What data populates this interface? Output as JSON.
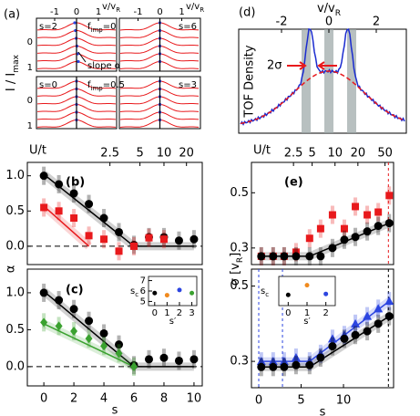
{
  "chart_data": [
    {
      "type": "spectra",
      "label": "(a)",
      "ylabel": [
        "I / I",
        "max"
      ],
      "xlabel": [
        "v/v",
        "R"
      ],
      "xticks": [
        -1,
        0,
        1
      ],
      "yticks": [
        0,
        1
      ],
      "subpanels": [
        {
          "text": "s=2"
        },
        {
          "text": "s=6"
        },
        {
          "text": "s=0"
        },
        {
          "text": "s=3"
        }
      ],
      "fimp": [
        [
          "f",
          "imp",
          "=0"
        ],
        [
          "f",
          "imp",
          "=0.5"
        ]
      ],
      "annotation": "slope α"
    },
    {
      "type": "profile",
      "label": "(d)",
      "xlabel": [
        "v/v",
        "R"
      ],
      "xticks": [
        -2,
        0,
        2
      ],
      "ylabel": "TOF Density",
      "annotation": "2σ"
    },
    {
      "type": "scatter",
      "label": "(b)",
      "xlim": [
        -1.1,
        10.55
      ],
      "ylim": [
        -0.26,
        1.19
      ],
      "yticks": [
        {
          "value": 0,
          "label": "0.0"
        },
        {
          "value": 0.5,
          "label": "0.5"
        },
        {
          "value": 1,
          "label": "1.0"
        }
      ],
      "x2label": "U/t",
      "x2ticks": [
        {
          "value": 4.4,
          "label": "2.5"
        },
        {
          "value": 6.4,
          "label": "5"
        },
        {
          "value": 8,
          "label": "10"
        },
        {
          "value": 9.5,
          "label": "20"
        }
      ],
      "reference_line": 0,
      "series": [
        {
          "marker": "circle",
          "color": "#000000",
          "x": [
            0,
            1,
            2,
            3,
            4,
            5,
            6,
            7,
            8,
            9,
            10
          ],
          "values": [
            1.0,
            0.88,
            0.75,
            0.6,
            0.4,
            0.2,
            0.02,
            0.13,
            0.13,
            0.08,
            0.1
          ]
        },
        {
          "marker": "square",
          "color": "#e8191c",
          "x": [
            0,
            1,
            2,
            3,
            4,
            5,
            6,
            7,
            8
          ],
          "values": [
            0.55,
            0.5,
            0.4,
            0.15,
            0.1,
            -0.07,
            0.0,
            0.12,
            0.1
          ]
        }
      ],
      "fits": [
        {
          "color": "#000000",
          "x": [
            0,
            6,
            10
          ],
          "values": [
            1.02,
            0,
            0
          ]
        },
        {
          "color": "#e8191c",
          "x": [
            0,
            3
          ],
          "values": [
            0.57,
            0
          ]
        }
      ]
    },
    {
      "type": "scatter",
      "label": "(c)",
      "xlim": [
        -1.1,
        10.55
      ],
      "ylim": [
        -0.26,
        1.32
      ],
      "yticks": [
        {
          "value": 0,
          "label": "0.0"
        },
        {
          "value": 0.5,
          "label": "0.5"
        },
        {
          "value": 1,
          "label": "1.0"
        }
      ],
      "xticks": [
        0,
        2,
        4,
        6,
        8,
        10
      ],
      "xlabel": "s",
      "ylabel": "α",
      "reference_line": 0,
      "series": [
        {
          "marker": "circle",
          "color": "#000000",
          "x": [
            0,
            1,
            2,
            3,
            4,
            5,
            6,
            7,
            8,
            9,
            10
          ],
          "values": [
            1.0,
            0.9,
            0.78,
            0.62,
            0.45,
            0.3,
            0.02,
            0.1,
            0.12,
            0.08,
            0.1
          ]
        },
        {
          "marker": "diamond",
          "color": "#3aa12f",
          "x": [
            0,
            1,
            2,
            3,
            4,
            5,
            6
          ],
          "values": [
            0.6,
            0.55,
            0.48,
            0.38,
            0.28,
            0.18,
            0.0
          ]
        }
      ],
      "fits": [
        {
          "color": "#000000",
          "x": [
            0,
            6,
            10
          ],
          "values": [
            1.02,
            0,
            0
          ]
        },
        {
          "color": "#3aa12f",
          "x": [
            0,
            6
          ],
          "values": [
            0.58,
            0
          ]
        }
      ]
    },
    {
      "type": "scatter",
      "label": "(e)",
      "xlim": [
        -0.86,
        15.91
      ],
      "ylim": [
        0.24,
        0.61
      ],
      "yticks": [
        0.3,
        0.5
      ],
      "x2label": "U/t",
      "x2ticks": [
        {
          "value": 4.1,
          "label": "2.5"
        },
        {
          "value": 6.3,
          "label": "5"
        },
        {
          "value": 9.0,
          "label": "10"
        },
        {
          "value": 11.7,
          "label": "20"
        },
        {
          "value": 14.9,
          "label": "50"
        }
      ],
      "vlines": [
        {
          "value": 15.3,
          "color": "#e8191c"
        }
      ],
      "series": [
        {
          "marker": "square",
          "color": "#e8191c",
          "x": [
            0.3,
            1.7,
            3.0,
            4.4,
            6.0,
            7.3,
            8.7,
            10.1,
            11.4,
            12.8,
            14.1,
            15.4
          ],
          "values": [
            0.27,
            0.27,
            0.27,
            0.285,
            0.335,
            0.37,
            0.42,
            0.37,
            0.45,
            0.42,
            0.43,
            0.49
          ]
        },
        {
          "marker": "circle",
          "color": "#000000",
          "x": [
            0.3,
            1.7,
            3.0,
            4.4,
            6.0,
            7.3,
            8.7,
            10.1,
            11.4,
            12.8,
            14.1,
            15.4
          ],
          "values": [
            0.27,
            0.27,
            0.27,
            0.27,
            0.27,
            0.27,
            0.3,
            0.33,
            0.34,
            0.36,
            0.38,
            0.39
          ]
        }
      ],
      "fits": [
        {
          "color": "#000000",
          "x": [
            0,
            6,
            15.4
          ],
          "values": [
            0.27,
            0.27,
            0.39
          ]
        }
      ]
    },
    {
      "type": "scatter",
      "label": "(f)",
      "xlim": [
        -0.86,
        15.91
      ],
      "ylim": [
        0.23,
        0.545
      ],
      "yticks": [
        0.3,
        0.5
      ],
      "xticks": [
        0,
        5,
        10
      ],
      "xlabel": "s",
      "ylabel": [
        "σ [v",
        "R",
        "]"
      ],
      "vlines": [
        {
          "value": 0,
          "color": "#2c45e0"
        },
        {
          "value": 2.8,
          "color": "#2c45e0"
        },
        {
          "value": 15.3,
          "color": "#000000"
        }
      ],
      "series": [
        {
          "marker": "triangle",
          "color": "#2c45e0",
          "x": [
            0.3,
            1.7,
            3.0,
            4.4,
            6.0,
            7.3,
            8.7,
            10.1,
            11.4,
            12.8,
            14.1,
            15.4
          ],
          "values": [
            0.3,
            0.3,
            0.3,
            0.31,
            0.3,
            0.32,
            0.36,
            0.37,
            0.4,
            0.42,
            0.44,
            0.46
          ]
        },
        {
          "marker": "circle",
          "color": "#000000",
          "x": [
            0.3,
            1.7,
            3.0,
            4.4,
            6.0,
            7.3,
            8.7,
            10.1,
            11.4,
            12.8,
            14.1,
            15.4
          ],
          "values": [
            0.285,
            0.285,
            0.285,
            0.29,
            0.29,
            0.31,
            0.34,
            0.36,
            0.37,
            0.38,
            0.4,
            0.42
          ]
        }
      ],
      "fits": [
        {
          "color": "#2c45e0",
          "x": [
            0,
            6,
            15.4
          ],
          "values": [
            0.3,
            0.3,
            0.46
          ]
        },
        {
          "color": "#000000",
          "x": [
            0,
            6,
            15.4
          ],
          "values": [
            0.285,
            0.285,
            0.42
          ]
        }
      ]
    },
    {
      "type": "scatter",
      "inset": true,
      "xlim": [
        -0.5,
        3.4
      ],
      "ylim": [
        4.6,
        7.4
      ],
      "yticks": [
        5,
        6,
        7
      ],
      "xticks": [
        0,
        1,
        2,
        3
      ],
      "xlabel": "s′",
      "ylabel": [
        "s",
        "c"
      ],
      "series": [
        {
          "marker": "small",
          "color": "#000000",
          "x": [
            0
          ],
          "values": [
            5.8
          ]
        },
        {
          "marker": "small",
          "color": "#f08a1e",
          "x": [
            1
          ],
          "values": [
            5.6
          ]
        },
        {
          "marker": "small",
          "color": "#2c45e0",
          "x": [
            2
          ],
          "values": [
            6.1
          ]
        },
        {
          "marker": "small",
          "color": "#3aa12f",
          "x": [
            3
          ],
          "values": [
            5.8
          ]
        }
      ]
    },
    {
      "type": "scatter",
      "inset": true,
      "xlim": [
        -0.5,
        2.5
      ],
      "ylim": [
        4.5,
        7.5
      ],
      "xticks": [
        0,
        1,
        2
      ],
      "xlabel": "s′",
      "ylabel": [
        "s",
        "c"
      ],
      "series": [
        {
          "marker": "small",
          "color": "#000000",
          "x": [
            0
          ],
          "values": [
            5.6
          ]
        },
        {
          "marker": "small",
          "color": "#f08a1e",
          "x": [
            1
          ],
          "values": [
            6.6
          ]
        },
        {
          "marker": "small",
          "color": "#2c45e0",
          "x": [
            2
          ],
          "values": [
            5.7
          ]
        }
      ]
    }
  ]
}
